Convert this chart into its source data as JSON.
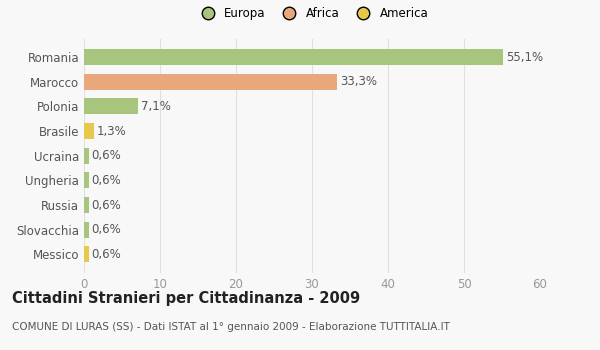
{
  "categories": [
    "Romania",
    "Marocco",
    "Polonia",
    "Brasile",
    "Ucraina",
    "Ungheria",
    "Russia",
    "Slovacchia",
    "Messico"
  ],
  "values": [
    55.1,
    33.3,
    7.1,
    1.3,
    0.6,
    0.6,
    0.6,
    0.6,
    0.6
  ],
  "labels": [
    "55,1%",
    "33,3%",
    "7,1%",
    "1,3%",
    "0,6%",
    "0,6%",
    "0,6%",
    "0,6%",
    "0,6%"
  ],
  "colors": [
    "#a8c57e",
    "#e8a87c",
    "#a8c57e",
    "#e8c84a",
    "#a8c57e",
    "#a8c57e",
    "#a8c57e",
    "#a8c57e",
    "#e8c84a"
  ],
  "legend": [
    {
      "label": "Europa",
      "color": "#a8c57e"
    },
    {
      "label": "Africa",
      "color": "#e8a87c"
    },
    {
      "label": "America",
      "color": "#e8c84a"
    }
  ],
  "title": "Cittadini Stranieri per Cittadinanza - 2009",
  "subtitle": "COMUNE DI LURAS (SS) - Dati ISTAT al 1° gennaio 2009 - Elaborazione TUTTITALIA.IT",
  "xlim": [
    0,
    60
  ],
  "xticks": [
    0,
    10,
    20,
    30,
    40,
    50,
    60
  ],
  "background_color": "#f8f8f8",
  "grid_color": "#e0e0e0",
  "bar_height": 0.65,
  "label_fontsize": 8.5,
  "tick_fontsize": 8.5,
  "title_fontsize": 10.5,
  "subtitle_fontsize": 7.5
}
